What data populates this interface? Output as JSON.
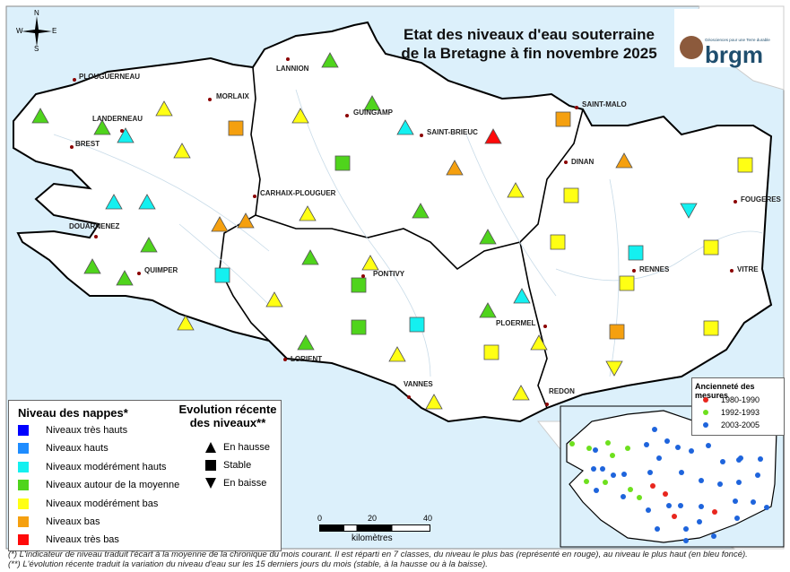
{
  "title": [
    "Etat des niveaux d'eau souterraine",
    "de la Bretagne à fin novembre 2025"
  ],
  "logo": {
    "text": "brgm",
    "tagline": "Géosciences pour une Terre durable"
  },
  "compass": {
    "n": "N",
    "s": "S",
    "e": "E",
    "w": "W"
  },
  "colors": {
    "sea": "#dcf0fb",
    "land": "#ffffff",
    "river": "#c8dbe8",
    "border": "#000000"
  },
  "cities": [
    "PLOUGUERNEAU",
    "LANDERNEAU",
    "BREST",
    "MORLAIX",
    "LANNION",
    "GUINGAMP",
    "SAINT-BRIEUC",
    "SAINT-MALO",
    "DINAN",
    "FOUGERES",
    "CARHAIX-PLOUGUER",
    "DOUARNENEZ",
    "QUIMPER",
    "PONTIVY",
    "RENNES",
    "VITRE",
    "PLOERMEL",
    "LORIENT",
    "VANNES",
    "REDON"
  ],
  "legend": {
    "levels_title": "Niveau des nappes*",
    "levels": [
      {
        "label": "Niveaux très hauts",
        "color": "#0000ff"
      },
      {
        "label": "Niveaux hauts",
        "color": "#1e8cff"
      },
      {
        "label": "Niveaux modérément hauts",
        "color": "#14f0f0"
      },
      {
        "label": "Niveaux autour de la moyenne",
        "color": "#4fd41c"
      },
      {
        "label": "Niveaux modérément bas",
        "color": "#ffff14"
      },
      {
        "label": "Niveaux bas",
        "color": "#f5a00f"
      },
      {
        "label": "Niveaux très bas",
        "color": "#ff0a0a"
      }
    ],
    "trend_title": [
      "Evolution récente",
      "des niveaux**"
    ],
    "trends": [
      {
        "label": "En hausse",
        "shape": "triangle-up"
      },
      {
        "label": "Stable",
        "shape": "square"
      },
      {
        "label": "En baisse",
        "shape": "triangle-down"
      }
    ]
  },
  "stations": [
    {
      "level": 3,
      "trend": "up"
    },
    {
      "level": 3,
      "trend": "up"
    },
    {
      "level": 2,
      "trend": "up"
    },
    {
      "level": 4,
      "trend": "up"
    },
    {
      "level": 4,
      "trend": "up"
    },
    {
      "level": 5,
      "trend": "stable"
    },
    {
      "level": 2,
      "trend": "up"
    },
    {
      "level": 2,
      "trend": "up"
    },
    {
      "level": 3,
      "trend": "up"
    },
    {
      "level": 3,
      "trend": "up"
    },
    {
      "level": 3,
      "trend": "up"
    },
    {
      "level": 5,
      "trend": "up"
    },
    {
      "level": 5,
      "trend": "up"
    },
    {
      "level": 2,
      "trend": "stable"
    },
    {
      "level": 4,
      "trend": "up"
    },
    {
      "level": 4,
      "trend": "up"
    },
    {
      "level": 3,
      "trend": "up"
    },
    {
      "level": 4,
      "trend": "up"
    },
    {
      "level": 3,
      "trend": "up"
    },
    {
      "level": 2,
      "trend": "up"
    },
    {
      "level": 3,
      "trend": "stable"
    },
    {
      "level": 4,
      "trend": "up"
    },
    {
      "level": 3,
      "trend": "up"
    },
    {
      "level": 5,
      "trend": "up"
    },
    {
      "level": 6,
      "trend": "up"
    },
    {
      "level": 5,
      "trend": "stable"
    },
    {
      "level": 4,
      "trend": "up"
    },
    {
      "level": 4,
      "trend": "stable"
    },
    {
      "level": 3,
      "trend": "up"
    },
    {
      "level": 5,
      "trend": "up"
    },
    {
      "level": 3,
      "trend": "up"
    },
    {
      "level": 4,
      "trend": "up"
    },
    {
      "level": 3,
      "trend": "stable"
    },
    {
      "level": 3,
      "trend": "stable"
    },
    {
      "level": 2,
      "trend": "stable"
    },
    {
      "level": 3,
      "trend": "up"
    },
    {
      "level": 4,
      "trend": "up"
    },
    {
      "level": 4,
      "trend": "up"
    },
    {
      "level": 3,
      "trend": "up"
    },
    {
      "level": 4,
      "trend": "stable"
    },
    {
      "level": 2,
      "trend": "up"
    },
    {
      "level": 4,
      "trend": "up"
    },
    {
      "level": 4,
      "trend": "up"
    },
    {
      "level": 4,
      "trend": "stable"
    },
    {
      "level": 2,
      "trend": "stable"
    },
    {
      "level": 4,
      "trend": "stable"
    },
    {
      "level": 5,
      "trend": "stable"
    },
    {
      "level": 4,
      "trend": "down"
    },
    {
      "level": 4,
      "trend": "stable"
    },
    {
      "level": 4,
      "trend": "stable"
    },
    {
      "level": 4,
      "trend": "stable"
    },
    {
      "level": 2,
      "trend": "down"
    }
  ],
  "scale": {
    "ticks": [
      "0",
      "20",
      "40"
    ],
    "unit": "kilomètres"
  },
  "inset": {
    "title": "Ancienneté des mesures",
    "periods": [
      {
        "label": "1980-1990",
        "color": "#e8261e"
      },
      {
        "label": "1992-1993",
        "color": "#6ee01e"
      },
      {
        "label": "2003-2005",
        "color": "#1e64dc"
      }
    ]
  },
  "notes": [
    "(*) L'indicateur de niveau traduit l'écart à la moyenne de la chronique du mois courant. Il est réparti en 7 classes, du niveau le plus bas (représenté en rouge), au niveau le plus haut (en bleu foncé).",
    "(**) L'évolution récente traduit la variation du niveau d'eau sur les 15 derniers jours du mois (stable, à la hausse ou à la baisse)."
  ]
}
